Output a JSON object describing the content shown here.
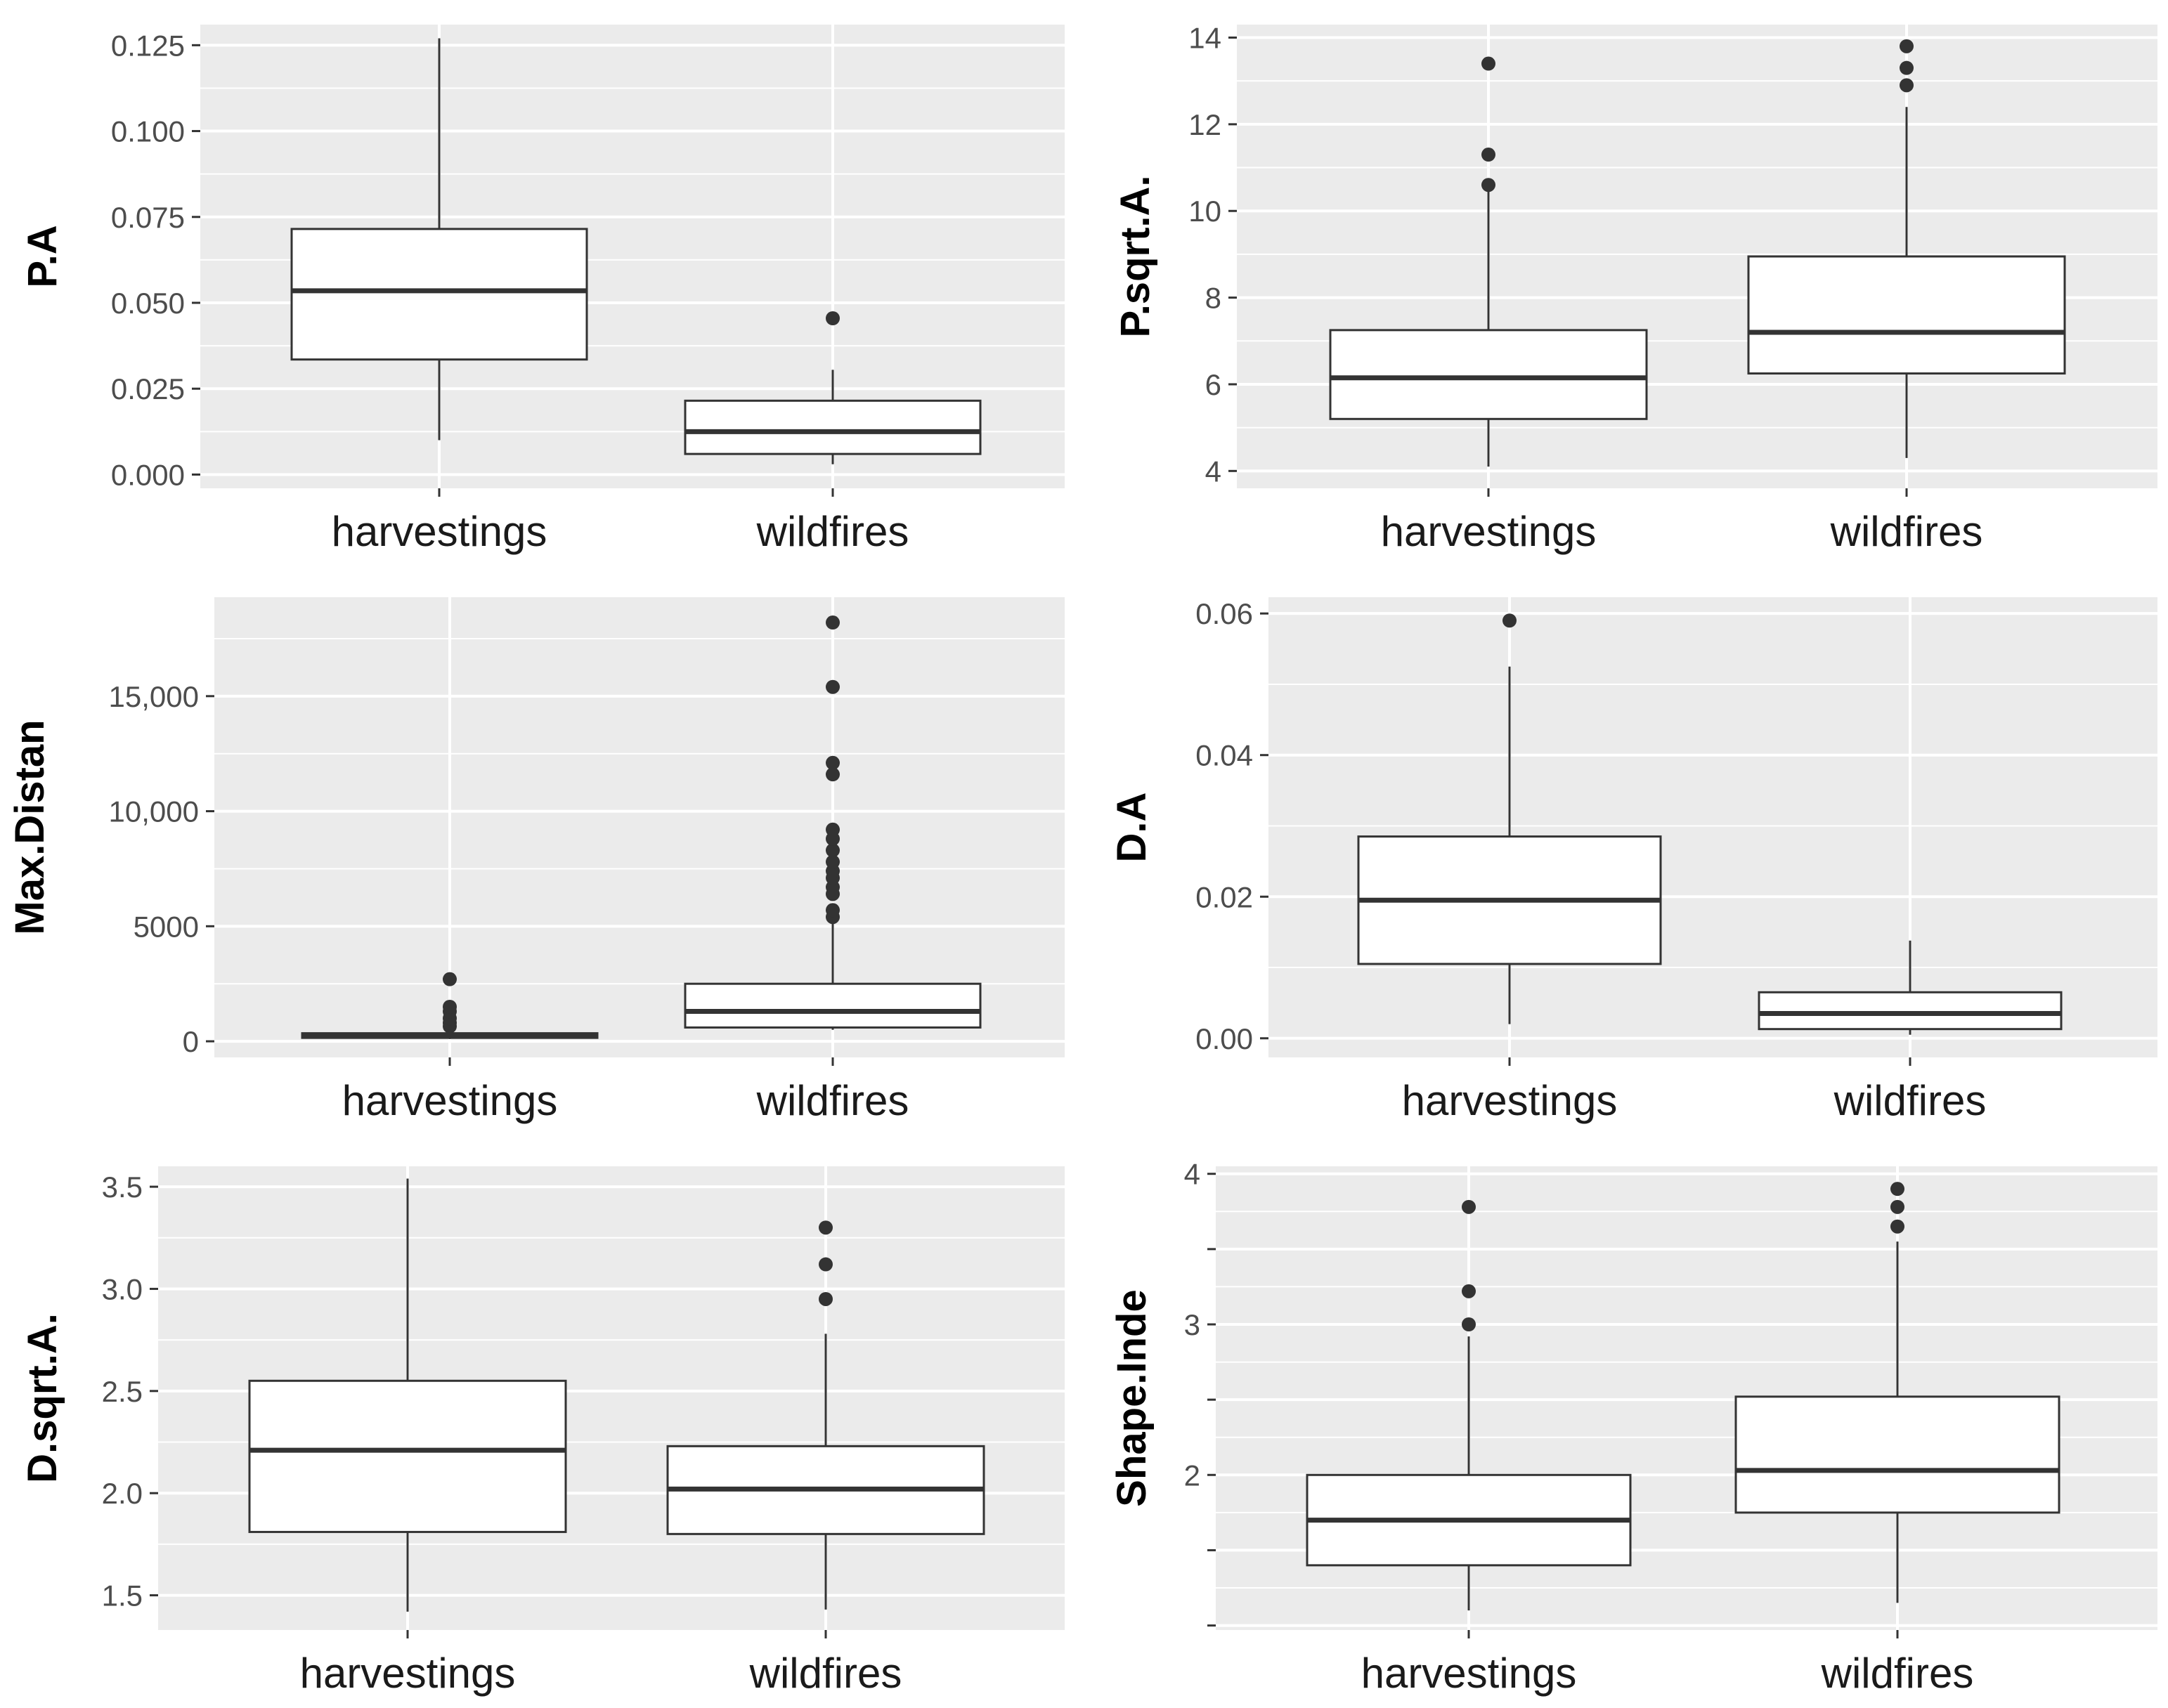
{
  "colors": {
    "panel_background": "#EBEBEB",
    "grid_line": "#FFFFFF",
    "box_fill": "#FFFFFF",
    "box_stroke": "#333333",
    "tick_text": "#4D4D4D"
  },
  "chart_data": [
    {
      "type": "boxplot",
      "ylabel": "P.A",
      "xlabel": "",
      "ylim": [
        -0.004,
        0.131
      ],
      "yticks": [
        0.0,
        0.025,
        0.05,
        0.075,
        0.1,
        0.125
      ],
      "ytick_labels": [
        "0.000",
        "0.025",
        "0.050",
        "0.075",
        "0.100",
        "0.125"
      ],
      "grid": true,
      "categories": [
        "harvestings",
        "wildfires"
      ],
      "boxes": [
        {
          "category": "harvestings",
          "whisker_low": 0.01,
          "q1": 0.0335,
          "median": 0.0535,
          "q3": 0.0715,
          "whisker_high": 0.127,
          "outliers": []
        },
        {
          "category": "wildfires",
          "whisker_low": 0.003,
          "q1": 0.006,
          "median": 0.0125,
          "q3": 0.0215,
          "whisker_high": 0.0305,
          "outliers": [
            0.0455
          ]
        }
      ]
    },
    {
      "type": "boxplot",
      "ylabel": "P.sqrt.A.",
      "xlabel": "",
      "ylim": [
        3.6,
        14.3
      ],
      "yticks": [
        4,
        6,
        8,
        10,
        12,
        14
      ],
      "ytick_labels": [
        "4",
        "6",
        "8",
        "10",
        "12",
        "14"
      ],
      "grid": true,
      "categories": [
        "harvestings",
        "wildfires"
      ],
      "boxes": [
        {
          "category": "harvestings",
          "whisker_low": 4.1,
          "q1": 5.2,
          "median": 6.15,
          "q3": 7.25,
          "whisker_high": 10.5,
          "outliers": [
            10.6,
            11.3,
            13.4
          ]
        },
        {
          "category": "wildfires",
          "whisker_low": 4.3,
          "q1": 6.25,
          "median": 7.2,
          "q3": 8.95,
          "whisker_high": 12.4,
          "outliers": [
            12.9,
            13.3,
            13.8
          ]
        }
      ]
    },
    {
      "type": "boxplot",
      "ylabel": "Max.Distan",
      "xlabel": "",
      "ylim": [
        -700,
        19300
      ],
      "yticks": [
        0,
        5000,
        10000,
        15000
      ],
      "ytick_labels": [
        "0",
        "5000",
        "10,000",
        "15,000"
      ],
      "grid": true,
      "categories": [
        "harvestings",
        "wildfires"
      ],
      "boxes": [
        {
          "category": "harvestings",
          "whisker_low": 100,
          "q1": 150,
          "median": 250,
          "q3": 350,
          "whisker_high": 550,
          "outliers": [
            650,
            800,
            1000,
            1300,
            1500,
            2700
          ]
        },
        {
          "category": "wildfires",
          "whisker_low": 500,
          "q1": 600,
          "median": 1300,
          "q3": 2500,
          "whisker_high": 5200,
          "outliers": [
            5400,
            5700,
            6400,
            6700,
            7100,
            7400,
            7800,
            8300,
            8800,
            9200,
            11600,
            12100,
            15400,
            18200
          ]
        }
      ]
    },
    {
      "type": "boxplot",
      "ylabel": "D.A",
      "xlabel": "",
      "ylim": [
        -0.0027,
        0.0623
      ],
      "yticks": [
        0.0,
        0.02,
        0.04,
        0.06
      ],
      "ytick_labels": [
        "0.00",
        "0.02",
        "0.04",
        "0.06"
      ],
      "grid": true,
      "categories": [
        "harvestings",
        "wildfires"
      ],
      "boxes": [
        {
          "category": "harvestings",
          "whisker_low": 0.002,
          "q1": 0.0105,
          "median": 0.0195,
          "q3": 0.0285,
          "whisker_high": 0.0525,
          "outliers": [
            0.059
          ]
        },
        {
          "category": "wildfires",
          "whisker_low": 0.0005,
          "q1": 0.0013,
          "median": 0.0035,
          "q3": 0.0065,
          "whisker_high": 0.0138,
          "outliers": []
        }
      ]
    },
    {
      "type": "boxplot",
      "ylabel": "D.sqrt.A.",
      "xlabel": "",
      "ylim": [
        1.33,
        3.6
      ],
      "yticks": [
        1.5,
        2.0,
        2.5,
        3.0,
        3.5
      ],
      "ytick_labels": [
        "1.5",
        "2.0",
        "2.5",
        "3.0",
        "3.5"
      ],
      "grid": true,
      "categories": [
        "harvestings",
        "wildfires"
      ],
      "boxes": [
        {
          "category": "harvestings",
          "whisker_low": 1.42,
          "q1": 1.81,
          "median": 2.21,
          "q3": 2.55,
          "whisker_high": 3.54,
          "outliers": []
        },
        {
          "category": "wildfires",
          "whisker_low": 1.43,
          "q1": 1.8,
          "median": 2.02,
          "q3": 2.23,
          "whisker_high": 2.78,
          "outliers": [
            2.95,
            3.12,
            3.3
          ]
        }
      ]
    },
    {
      "type": "boxplot",
      "ylabel": "Shape.Inde",
      "xlabel": "",
      "ylim": [
        0.97,
        4.05
      ],
      "yticks": [
        1.0,
        1.5,
        2.0,
        2.5,
        3.0,
        3.5,
        4.0
      ],
      "ytick_labels": [
        "",
        "",
        "2",
        "",
        "3",
        "",
        "4"
      ],
      "grid": true,
      "categories": [
        "harvestings",
        "wildfires"
      ],
      "boxes": [
        {
          "category": "harvestings",
          "whisker_low": 1.1,
          "q1": 1.4,
          "median": 1.7,
          "q3": 2.0,
          "whisker_high": 2.92,
          "outliers": [
            3.0,
            3.22,
            3.78
          ]
        },
        {
          "category": "wildfires",
          "whisker_low": 1.15,
          "q1": 1.75,
          "median": 2.03,
          "q3": 2.52,
          "whisker_high": 3.55,
          "outliers": [
            3.65,
            3.78,
            3.9
          ]
        }
      ]
    }
  ]
}
